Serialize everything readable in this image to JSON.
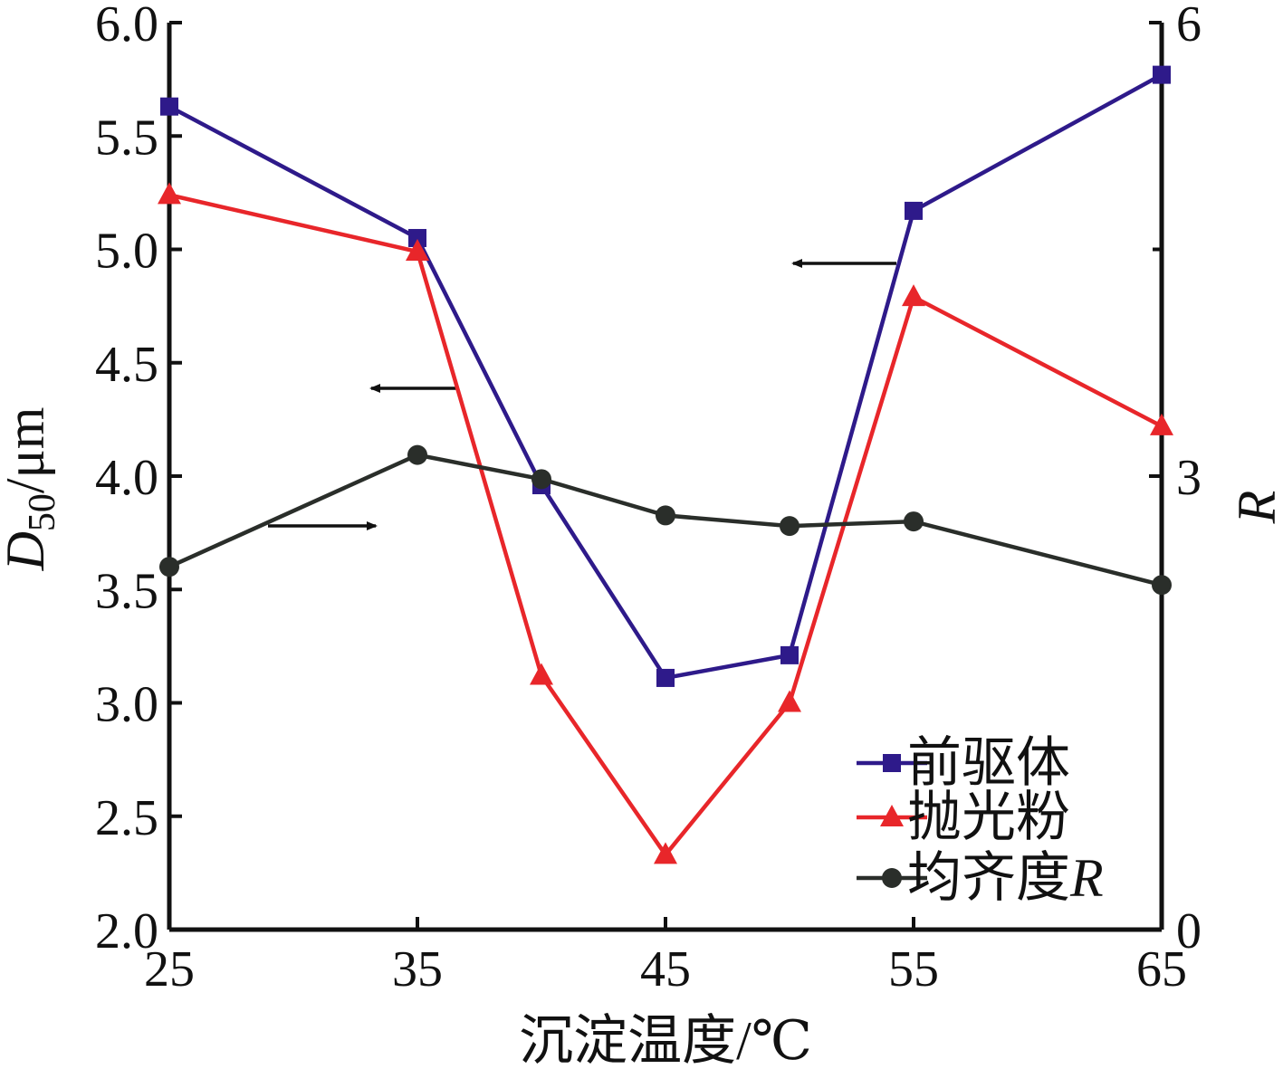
{
  "chart_data": {
    "type": "line",
    "x": [
      25,
      35,
      40,
      45,
      50,
      55,
      65
    ],
    "xlabel": "沉淀温度/℃",
    "ylabel": {
      "main": "D",
      "sub": "50",
      "unit": "/μm"
    },
    "y2label": "R",
    "xlim": [
      25,
      65
    ],
    "ylim": [
      2.0,
      6.0
    ],
    "y2lim": [
      0,
      6
    ],
    "xticks": [
      "25",
      "35",
      "45",
      "55",
      "65"
    ],
    "xtick_values": [
      25,
      35,
      45,
      55,
      65
    ],
    "yticks": [
      "2.0",
      "2.5",
      "3.0",
      "3.5",
      "4.0",
      "4.5",
      "5.0",
      "5.5",
      "6.0"
    ],
    "ytick_values": [
      2.0,
      2.5,
      3.0,
      3.5,
      4.0,
      4.5,
      5.0,
      5.5,
      6.0
    ],
    "y2ticks": [
      "0",
      "3",
      "6"
    ],
    "y2tick_values": [
      0,
      3,
      6
    ],
    "grid": false,
    "legend_position": "bottom-right",
    "series": [
      {
        "name": "前驱体",
        "axis": "left",
        "marker": "square",
        "color": "#2e1a8a",
        "values": [
          5.63,
          5.05,
          3.96,
          3.11,
          3.21,
          5.17,
          5.77
        ]
      },
      {
        "name": "抛光粉",
        "axis": "left",
        "marker": "triangle",
        "color": "#e8262a",
        "values": [
          5.24,
          4.99,
          3.12,
          2.33,
          3.0,
          4.79,
          4.22
        ]
      },
      {
        "name": "均齐度",
        "name_suffix": "R",
        "axis": "right",
        "marker": "circle",
        "color": "#2a2e2a",
        "values": [
          2.4,
          3.14,
          2.98,
          2.74,
          2.67,
          2.7,
          2.28
        ]
      }
    ],
    "annotations": [
      {
        "type": "arrow",
        "direction": "left",
        "points_to": "left-axis",
        "near_series": "抛光粉"
      },
      {
        "type": "arrow",
        "direction": "left",
        "points_to": "left-axis",
        "near_series": "前驱体"
      },
      {
        "type": "arrow",
        "direction": "right",
        "points_to": "right-axis",
        "near_series": "均齐度"
      }
    ]
  }
}
